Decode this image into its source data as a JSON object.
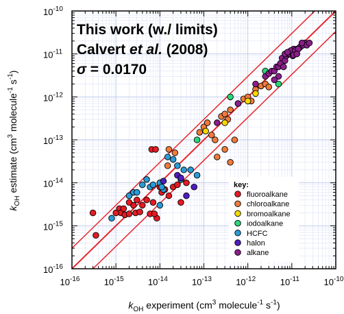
{
  "chart_data": {
    "type": "scatter",
    "log_x": true,
    "log_y": true,
    "xlim": [
      1e-16,
      1e-10
    ],
    "ylim": [
      1e-16,
      1e-10
    ],
    "x_ticks": [
      {
        "base": "10",
        "exp": "-16"
      },
      {
        "base": "10",
        "exp": "-15"
      },
      {
        "base": "10",
        "exp": "-14"
      },
      {
        "base": "10",
        "exp": "-13"
      },
      {
        "base": "10",
        "exp": "-12"
      },
      {
        "base": "10",
        "exp": "-11"
      },
      {
        "base": "10",
        "exp": "-10"
      }
    ],
    "y_ticks": [
      {
        "base": "10",
        "exp": "-16"
      },
      {
        "base": "10",
        "exp": "-15"
      },
      {
        "base": "10",
        "exp": "-14"
      },
      {
        "base": "10",
        "exp": "-13"
      },
      {
        "base": "10",
        "exp": "-12"
      },
      {
        "base": "10",
        "exp": "-11"
      },
      {
        "base": "10",
        "exp": "-10"
      }
    ],
    "xlabel": {
      "k": "k",
      "sub": "OH",
      "text": " experiment (cm",
      "sup3": "3",
      "text2": " molecule",
      "sup4": "-1",
      "text3": " s",
      "sup5": "-1",
      "end": ")"
    },
    "ylabel": {
      "k": "k",
      "sub": "OH",
      "text": " estimate (cm",
      "sup3": "3",
      "text2": " molecule",
      "sup4": "-1",
      "text3": " s",
      "sup5": "-1",
      "end": ")"
    },
    "annotations": {
      "line1": "This work (w./ limits)",
      "line2a": "Calvert ",
      "line2b": "et al.",
      "line2c": " (2008)",
      "line3a": "σ",
      "line3b": " = 0.0170"
    },
    "legend_title": "key:",
    "legend_position": "bottom-right",
    "grid": true,
    "lines": [
      {
        "style": "1:1",
        "factor": 1,
        "color": "#e8232a"
      },
      {
        "style": "upper bound",
        "factor": 3,
        "color": "#e8232a"
      },
      {
        "style": "lower bound",
        "factor": 0.333,
        "color": "#e8232a"
      }
    ],
    "series": [
      {
        "name": "fluoroalkane",
        "color": "#e31b23",
        "points": [
          [
            3e-16,
            2e-15
          ],
          [
            3.5e-16,
            6e-16
          ],
          [
            1.2e-15,
            2.5e-15
          ],
          [
            1.3e-15,
            2e-15
          ],
          [
            1.5e-15,
            2.5e-15
          ],
          [
            1.6e-15,
            1.8e-15
          ],
          [
            2e-15,
            1.9e-15
          ],
          [
            2.5e-15,
            3e-15
          ],
          [
            2.8e-15,
            2e-15
          ],
          [
            3e-15,
            4e-15
          ],
          [
            3.5e-15,
            2.1e-15
          ],
          [
            4e-15,
            3e-15
          ],
          [
            5e-15,
            4e-15
          ],
          [
            6e-15,
            1.9e-15
          ],
          [
            6.5e-15,
            6e-14
          ],
          [
            7e-15,
            3.5e-15
          ],
          [
            8e-15,
            6e-14
          ],
          [
            8.5e-15,
            1.5e-15
          ],
          [
            1e-14,
            8e-15
          ],
          [
            1.1e-14,
            6e-15
          ],
          [
            1.3e-14,
            7e-15
          ],
          [
            1.6e-14,
            5e-15
          ],
          [
            2e-14,
            8e-15
          ],
          [
            3e-14,
            3.5e-15
          ],
          [
            2.5e-14,
            9e-15
          ],
          [
            4e-14,
            1e-14
          ],
          [
            1e-15,
            2e-15
          ],
          [
            2e-15,
            3.5e-15
          ],
          [
            7.5e-15,
            1.9e-15
          ]
        ]
      },
      {
        "name": "chloroalkane",
        "color": "#ef7b3c",
        "points": [
          [
            1.6e-14,
            6e-14
          ],
          [
            2.2e-14,
            5e-14
          ],
          [
            1.5e-14,
            2.5e-14
          ],
          [
            8e-14,
            1.5e-13
          ],
          [
            1e-13,
            2e-13
          ],
          [
            1.2e-13,
            2.5e-13
          ],
          [
            1.5e-13,
            1.3e-13
          ],
          [
            1.8e-13,
            1e-13
          ],
          [
            2.5e-13,
            3.5e-13
          ],
          [
            3e-13,
            4e-13
          ],
          [
            3.5e-13,
            3e-13
          ],
          [
            4e-13,
            5e-13
          ],
          [
            3e-13,
            6e-14
          ],
          [
            2e-13,
            4e-14
          ],
          [
            5e-13,
            1e-13
          ],
          [
            6e-13,
            7e-13
          ],
          [
            8e-13,
            9e-13
          ],
          [
            1e-12,
            1e-12
          ],
          [
            1.5e-12,
            1.5e-12
          ],
          [
            2e-12,
            1.8e-12
          ],
          [
            2.5e-12,
            2e-12
          ],
          [
            3e-12,
            1.7e-12
          ],
          [
            1.2e-12,
            8e-13
          ],
          [
            4e-13,
            3e-14
          ]
        ]
      },
      {
        "name": "bromoalkane",
        "color": "#f6d800",
        "points": [
          [
            1.1e-13,
            1.6e-13
          ],
          [
            3e-13,
            2.5e-13
          ],
          [
            1e-12,
            8e-13
          ],
          [
            1.5e-12,
            1.2e-12
          ]
        ]
      },
      {
        "name": "iodoalkane",
        "color": "#2bd67a",
        "points": [
          [
            7e-14,
            1e-13
          ],
          [
            4e-13,
            1e-12
          ],
          [
            2.5e-12,
            4e-12
          ],
          [
            5e-12,
            2e-12
          ],
          [
            1.3e-11,
            1e-11
          ]
        ]
      },
      {
        "name": "HCFC",
        "color": "#2a9bd6",
        "points": [
          [
            8e-16,
            1.5e-15
          ],
          [
            2e-15,
            5e-15
          ],
          [
            2.5e-15,
            6e-15
          ],
          [
            3e-15,
            6e-15
          ],
          [
            4e-15,
            9e-15
          ],
          [
            5e-15,
            1.2e-14
          ],
          [
            6e-15,
            8e-15
          ],
          [
            7e-15,
            9e-15
          ],
          [
            1e-14,
            1e-14
          ],
          [
            1.2e-14,
            7e-15
          ],
          [
            1.5e-14,
            4e-14
          ],
          [
            2e-14,
            3.5e-14
          ],
          [
            3e-14,
            1.2e-14
          ],
          [
            3.5e-14,
            2e-14
          ],
          [
            5e-14,
            2e-14
          ],
          [
            7e-14,
            1.5e-14
          ],
          [
            1e-14,
            3e-15
          ],
          [
            1.1e-14,
            8e-15
          ],
          [
            2.5e-14,
            2.5e-14
          ]
        ]
      },
      {
        "name": "halon",
        "color": "#4f1dbf",
        "points": [
          [
            1.2e-14,
            1.1e-14
          ],
          [
            2.5e-14,
            1.5e-14
          ],
          [
            4e-14,
            5e-15
          ],
          [
            6e-14,
            8e-15
          ],
          [
            3e-14,
            1.3e-14
          ]
        ]
      },
      {
        "name": "alkane",
        "color": "#8b1e8b",
        "points": [
          [
            2e-13,
            2.5e-13
          ],
          [
            6e-13,
            7e-13
          ],
          [
            1.5e-12,
            2e-12
          ],
          [
            2.5e-12,
            3e-12
          ],
          [
            3e-12,
            3.5e-12
          ],
          [
            3.5e-12,
            4e-12
          ],
          [
            4e-12,
            4e-12
          ],
          [
            4.5e-12,
            5e-12
          ],
          [
            5e-12,
            5e-12
          ],
          [
            5.5e-12,
            6e-12
          ],
          [
            6e-12,
            8e-12
          ],
          [
            6.5e-12,
            5e-12
          ],
          [
            7e-12,
            7e-12
          ],
          [
            7.5e-12,
            9e-12
          ],
          [
            8e-12,
            1e-11
          ],
          [
            8.5e-12,
            1.1e-11
          ],
          [
            9e-12,
            1e-11
          ],
          [
            1e-11,
            1.2e-11
          ],
          [
            1.1e-11,
            1.3e-11
          ],
          [
            1.2e-11,
            1.1e-11
          ],
          [
            1.3e-11,
            1.3e-11
          ],
          [
            1.5e-11,
            1.4e-11
          ],
          [
            1.6e-11,
            1.5e-11
          ],
          [
            1.8e-11,
            1.6e-11
          ],
          [
            2e-11,
            1.8e-11
          ],
          [
            2.2e-11,
            1.6e-11
          ],
          [
            2.5e-11,
            1.8e-11
          ],
          [
            1e-11,
            1.1e-11
          ],
          [
            9.5e-12,
            1.2e-11
          ],
          [
            1.05e-11,
            9e-12
          ],
          [
            1.2e-11,
            1.2e-11
          ],
          [
            1.4e-11,
            1.3e-11
          ],
          [
            7e-12,
            1e-11
          ],
          [
            8e-12,
            1.1e-11
          ],
          [
            5e-12,
            3e-12
          ],
          [
            4e-12,
            2.5e-12
          ],
          [
            1.1e-11,
            9.5e-12
          ],
          [
            1.3e-11,
            1e-11
          ],
          [
            1.7e-11,
            1.8e-11
          ]
        ]
      }
    ]
  }
}
